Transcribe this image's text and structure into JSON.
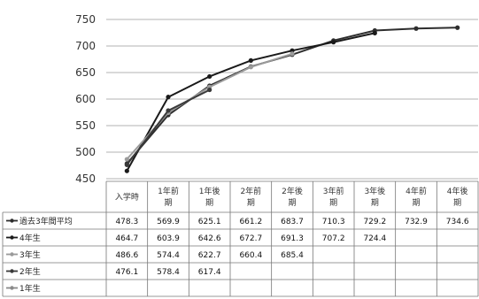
{
  "chart_data": {
    "type": "line",
    "title": "",
    "xlabel": "",
    "ylabel": "",
    "ylim": [
      450,
      750
    ],
    "yticks": [
      450,
      500,
      550,
      600,
      650,
      700,
      750
    ],
    "grid": true,
    "legend": "data table below chart",
    "categories": [
      "入学時",
      "1年前期",
      "1年後期",
      "2年前期",
      "2年後期",
      "3年前期",
      "3年後期",
      "4年前期",
      "4年後期"
    ],
    "category_lines": [
      [
        "入学時"
      ],
      [
        "1年前",
        "期"
      ],
      [
        "1年後",
        "期"
      ],
      [
        "2年前",
        "期"
      ],
      [
        "2年後",
        "期"
      ],
      [
        "3年前",
        "期"
      ],
      [
        "3年後",
        "期"
      ],
      [
        "4年前",
        "期"
      ],
      [
        "4年後",
        "期"
      ]
    ],
    "series": [
      {
        "name": "過去3年間平均",
        "color": "#2e2e2e",
        "values": [
          478.3,
          569.9,
          625.1,
          661.2,
          683.7,
          710.3,
          729.2,
          732.9,
          734.6
        ]
      },
      {
        "name": "4年生",
        "color": "#1a1a1a",
        "values": [
          464.7,
          603.9,
          642.6,
          672.7,
          691.3,
          707.2,
          724.4,
          null,
          null
        ]
      },
      {
        "name": "3年生",
        "color": "#9a9a9a",
        "values": [
          486.6,
          574.4,
          622.7,
          660.4,
          685.4,
          null,
          null,
          null,
          null
        ]
      },
      {
        "name": "2年生",
        "color": "#3a3a3a",
        "values": [
          476.1,
          578.4,
          617.4,
          null,
          null,
          null,
          null,
          null,
          null
        ]
      },
      {
        "name": "1年生",
        "color": "#8a8a8a",
        "values": [
          null,
          null,
          null,
          null,
          null,
          null,
          null,
          null,
          null
        ]
      }
    ],
    "cell_text": [
      [
        "478.3",
        "569.9",
        "625.1",
        "661.2",
        "683.7",
        "710.3",
        "729.2",
        "732.9",
        "734.6"
      ],
      [
        "464.7",
        "603.9",
        "642.6",
        "672.7",
        "691.3",
        "707.2",
        "724.4",
        "",
        ""
      ],
      [
        "486.6",
        "574.4",
        "622.7",
        "660.4",
        "685.4",
        "",
        "",
        "",
        ""
      ],
      [
        "476.1",
        "578.4",
        "617.4",
        "",
        "",
        "",
        "",
        "",
        ""
      ],
      [
        "",
        "",
        "",
        "",
        "",
        "",
        "",
        "",
        ""
      ]
    ]
  }
}
